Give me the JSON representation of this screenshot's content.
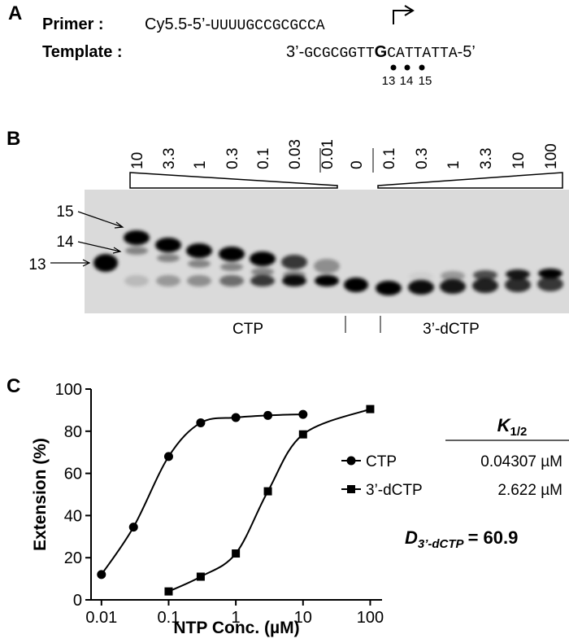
{
  "panel_a": {
    "label": "A",
    "primer_label": "Primer :",
    "primer_prefix": "Cy5.5-5’-",
    "primer_sequence": "UUUUGCCGCGCCA",
    "template_label": "Template :",
    "template_prefix": "3’-",
    "template_sequence_left": "GCGCGGTT",
    "template_position_base": "G",
    "template_sequence_right": "CATTATTA",
    "template_suffix": "-5’",
    "positions": [
      "13",
      "14",
      "15"
    ]
  },
  "panel_b": {
    "label": "B",
    "lanes": [
      "10",
      "3.3",
      "1",
      "0.3",
      "0.1",
      "0.03",
      "0.01",
      "0",
      "0.1",
      "0.3",
      "1",
      "3.3",
      "10",
      "100"
    ],
    "band_labels": [
      "15",
      "14",
      "13"
    ],
    "groups": [
      "CTP",
      "3’-dCTP"
    ]
  },
  "chart_data": {
    "type": "line",
    "label": "C",
    "x_label": "NTP Conc. (µM)",
    "y_label": "Extension (%)",
    "log_x": true,
    "xlim": [
      0.007,
      150
    ],
    "xticks": [
      0.01,
      0.1,
      1,
      10,
      100
    ],
    "ylim": [
      0,
      100
    ],
    "yticks": [
      0,
      20,
      40,
      60,
      80,
      100
    ],
    "series": [
      {
        "name": "CTP",
        "marker": "circle",
        "color": "#000000",
        "x": [
          0.01,
          0.03,
          0.1,
          0.3,
          1,
          3,
          10
        ],
        "values": [
          12,
          34.5,
          68,
          84,
          86.5,
          87.5,
          88
        ]
      },
      {
        "name": "3’-dCTP",
        "marker": "square",
        "color": "#000000",
        "x": [
          0.1,
          0.3,
          1,
          3,
          10,
          100
        ],
        "values": [
          4,
          11,
          22,
          51.5,
          78.5,
          90.5
        ]
      }
    ],
    "table": {
      "header_symbol": "K",
      "header_subscript": "1/2",
      "rows": [
        "0.04307 µM",
        "2.622 µM"
      ]
    },
    "annotation": {
      "symbol": "D",
      "subscript": "3’-dCTP",
      "text": "= 60.9"
    }
  }
}
